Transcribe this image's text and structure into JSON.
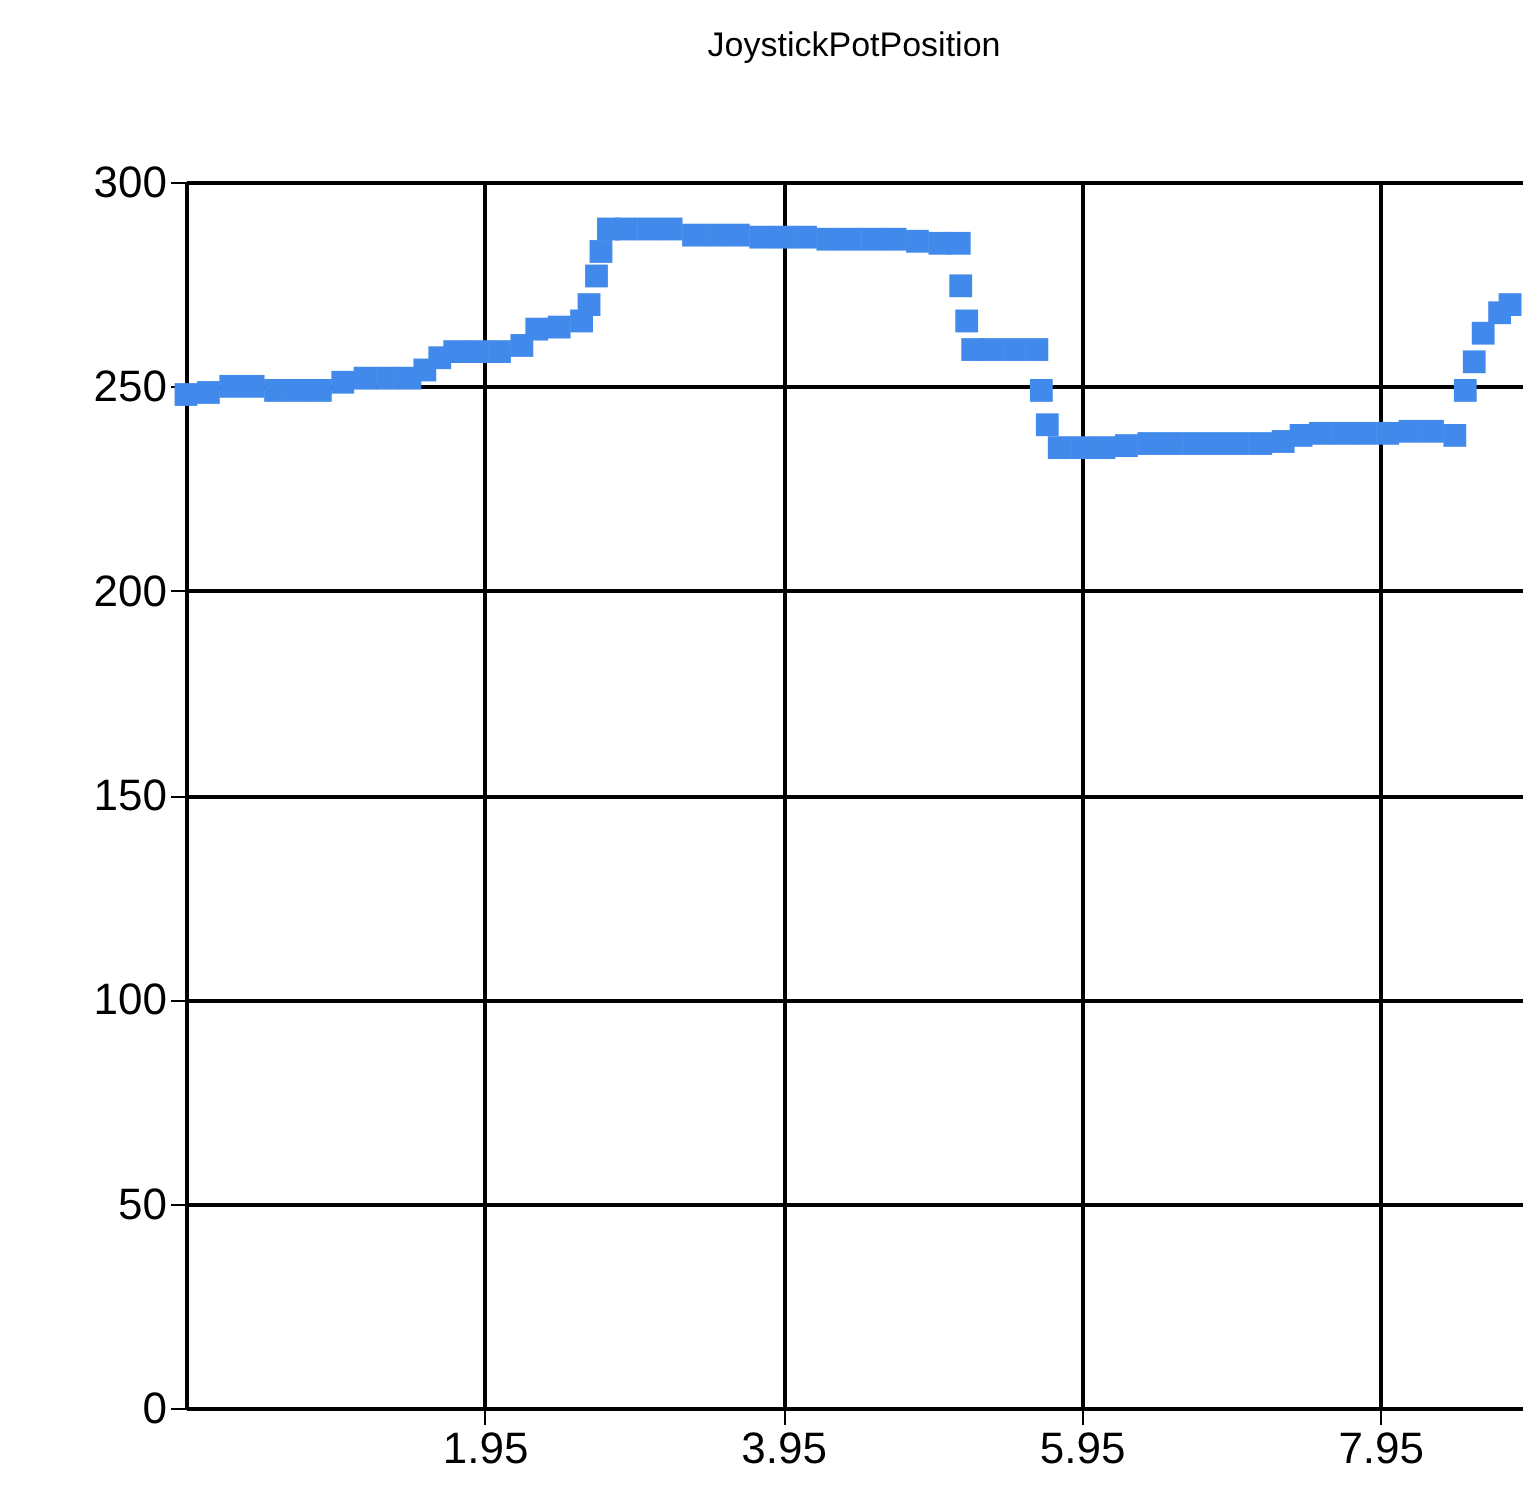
{
  "chart_data": {
    "type": "scatter",
    "title": "JoystickPotPosition",
    "marker": "square",
    "grid": true,
    "xlim": [
      -0.05,
      8.9
    ],
    "xticks": [
      1.95,
      3.95,
      5.95,
      7.95
    ],
    "ylim": [
      0,
      300
    ],
    "yticks": [
      0,
      50,
      100,
      150,
      200,
      250,
      300
    ],
    "series": [
      {
        "color": "#4189ea",
        "x": [
          -0.05,
          0.1,
          0.25,
          0.4,
          0.55,
          0.7,
          0.85,
          1.0,
          1.15,
          1.3,
          1.45,
          1.55,
          1.65,
          1.75,
          1.9,
          2.05,
          2.2,
          2.3,
          2.45,
          2.6,
          2.65,
          2.7,
          2.73,
          2.78,
          2.9,
          3.05,
          3.2,
          3.35,
          3.5,
          3.65,
          3.8,
          3.95,
          4.1,
          4.25,
          4.4,
          4.55,
          4.7,
          4.85,
          5.0,
          5.13,
          5.14,
          5.18,
          5.22,
          5.35,
          5.5,
          5.65,
          5.68,
          5.72,
          5.8,
          5.95,
          6.1,
          6.25,
          6.4,
          6.55,
          6.7,
          6.85,
          7.0,
          7.15,
          7.3,
          7.42,
          7.55,
          7.7,
          7.85,
          8.0,
          8.15,
          8.3,
          8.45,
          8.52,
          8.58,
          8.64,
          8.75,
          8.82
        ],
        "values": [
          248,
          248.5,
          250,
          250,
          249,
          249,
          249,
          251,
          252,
          252,
          252,
          254,
          257,
          258.5,
          258.5,
          258.5,
          260,
          264,
          264.5,
          266,
          270,
          277,
          283,
          288.5,
          288.5,
          288.5,
          288.5,
          287,
          287,
          287,
          286.5,
          286.5,
          286.5,
          286,
          286,
          286,
          286,
          285.5,
          285,
          285,
          274.6,
          266,
          259,
          259,
          259,
          259,
          249,
          240.6,
          235,
          235,
          235,
          235.5,
          236,
          236,
          236,
          236,
          236,
          236,
          236.5,
          238,
          238.5,
          238.5,
          238.5,
          238.5,
          239,
          239,
          238,
          249,
          256,
          263,
          268,
          270
        ]
      }
    ]
  }
}
